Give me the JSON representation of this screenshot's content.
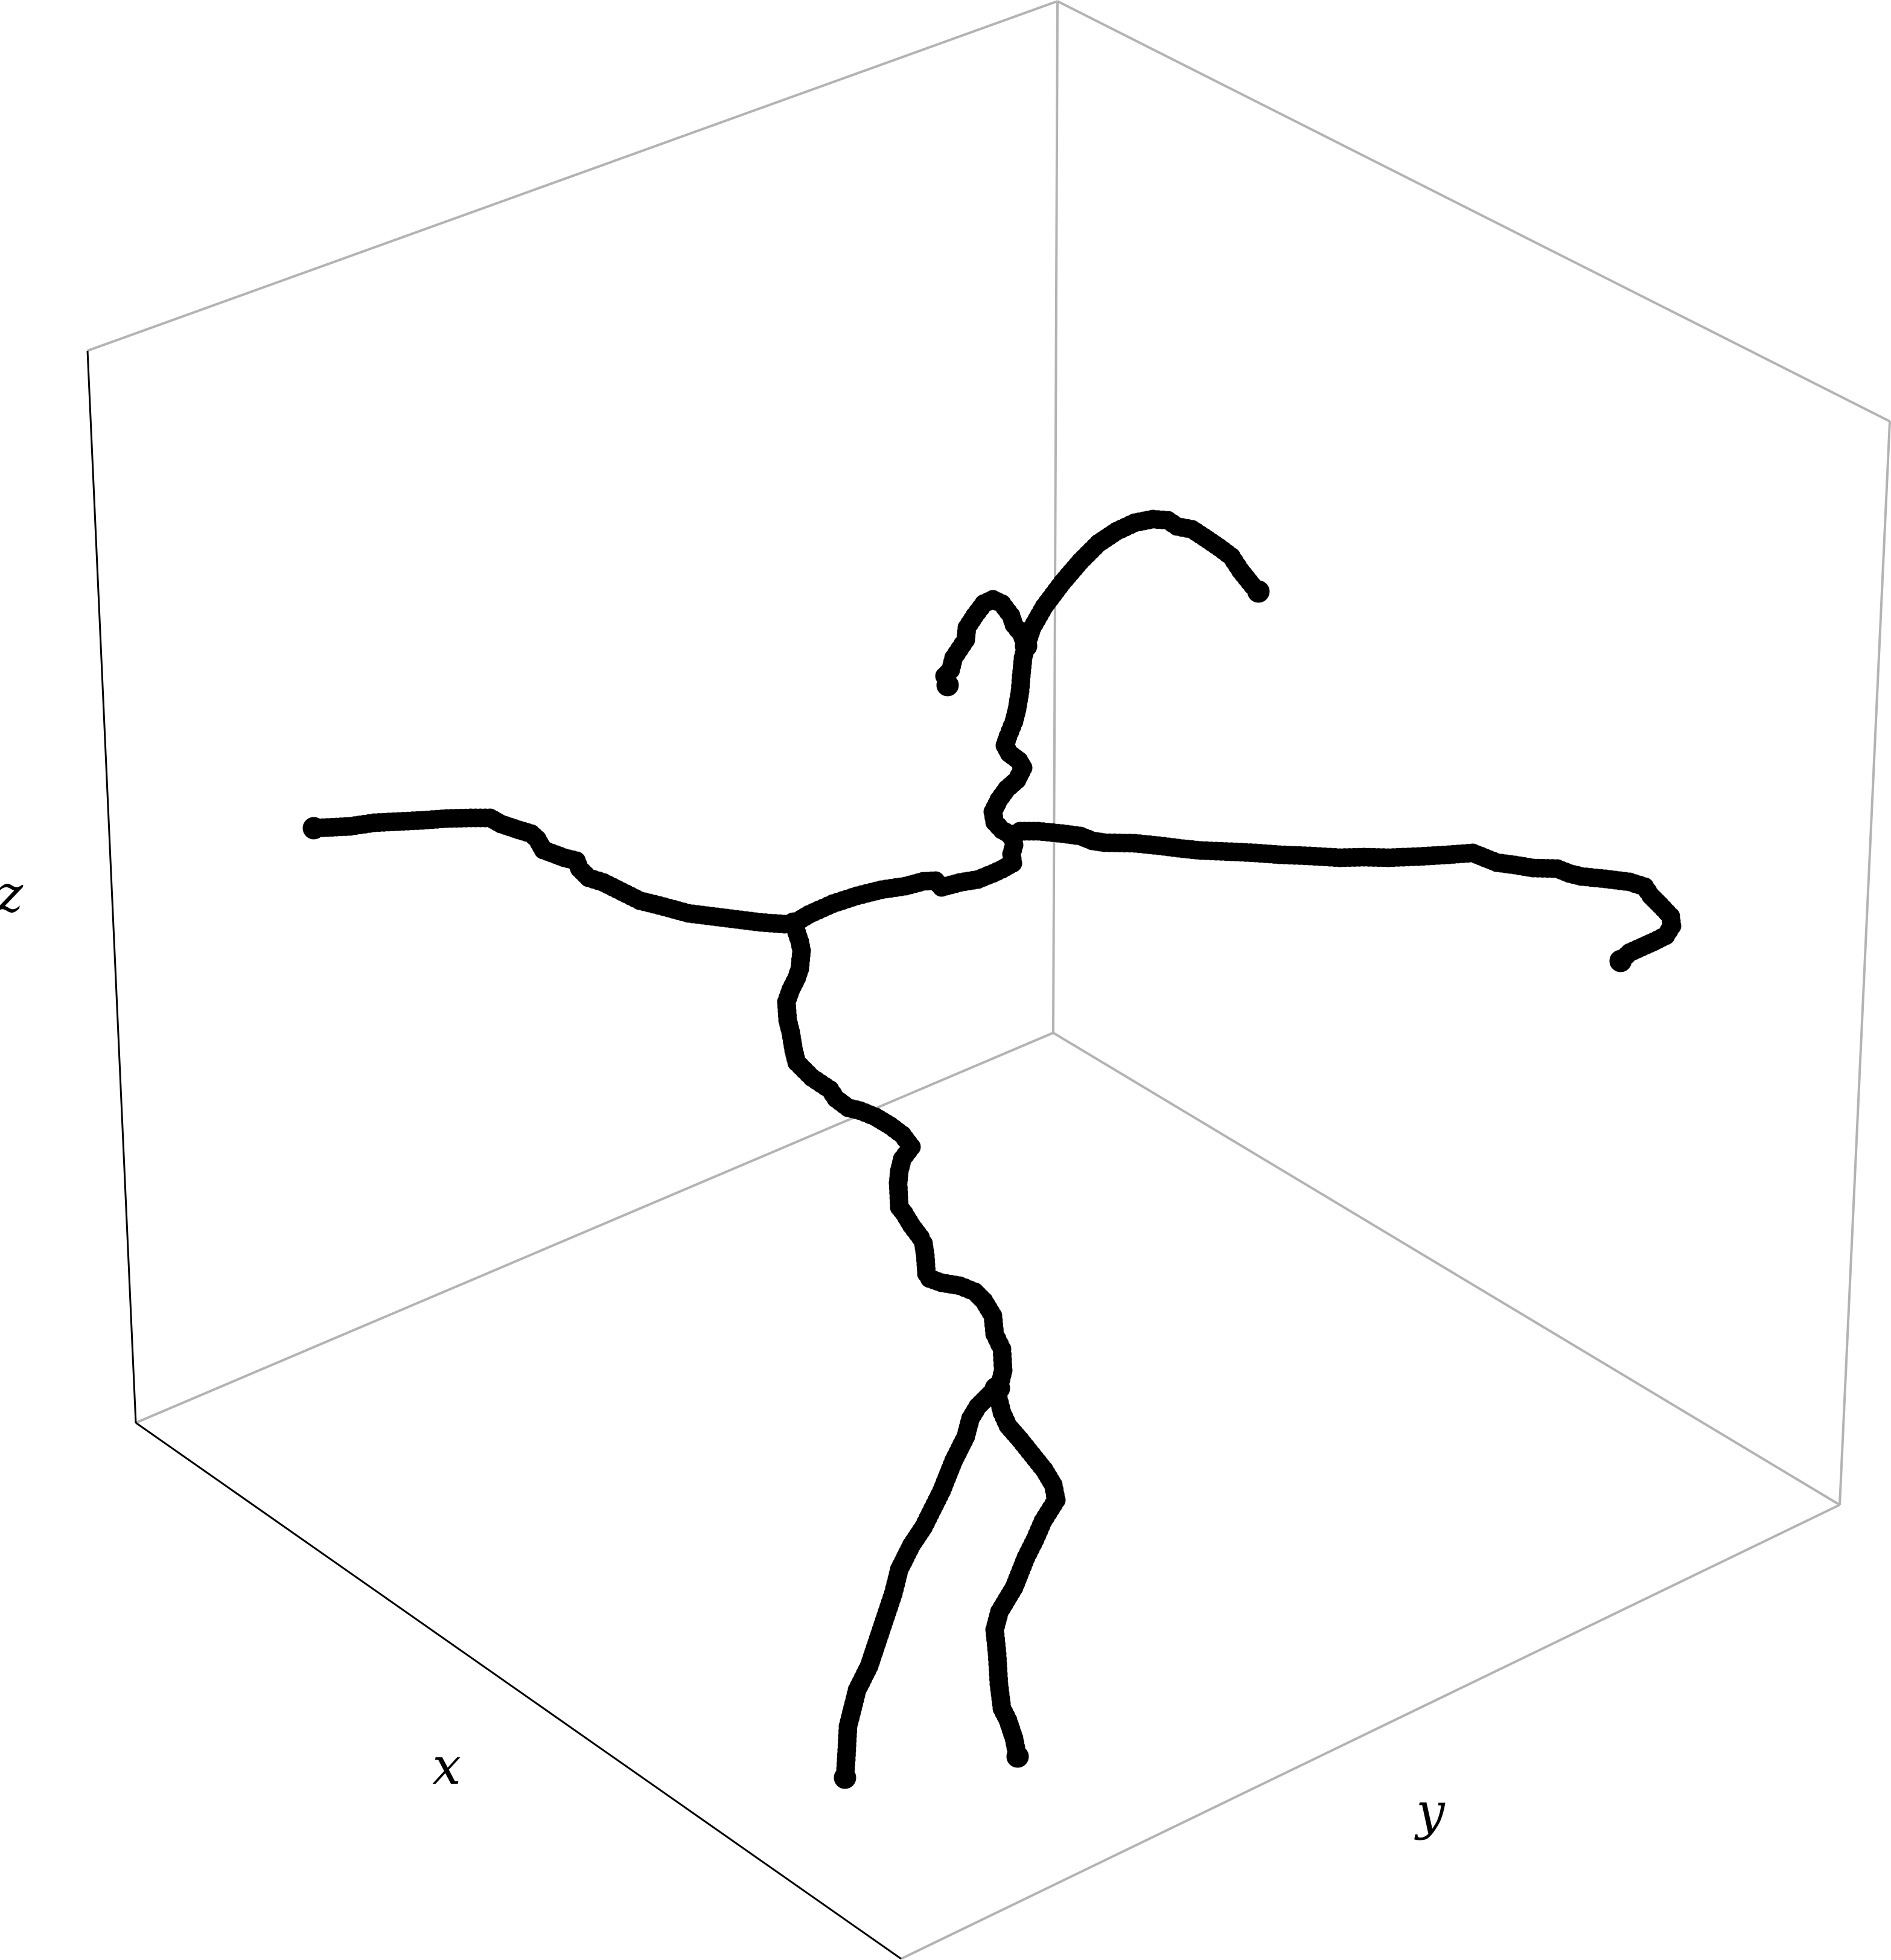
{
  "chart_data": {
    "type": "line",
    "title": "",
    "xlabel": "x",
    "ylabel": "y",
    "zlabel": "z",
    "grid": false,
    "legend": "none",
    "colors": {
      "series": "#000000",
      "front_box_edges": "#000000",
      "back_box_edges": "#b3b3b3"
    },
    "series": [
      {
        "marker": "filled-circle",
        "points": []
      }
    ]
  }
}
